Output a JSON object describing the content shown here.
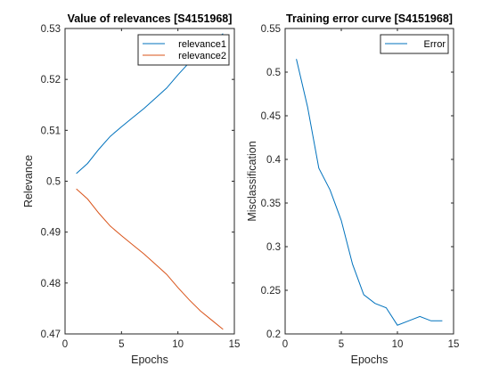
{
  "chart_data": [
    {
      "type": "line",
      "title": "Value of relevances [S4151968]",
      "xlabel": "Epochs",
      "ylabel": "Relevance",
      "xlim": [
        0,
        15
      ],
      "ylim": [
        0.47,
        0.53
      ],
      "xticks": [
        "0",
        "5",
        "10",
        "15"
      ],
      "yticks": [
        "0.47",
        "0.48",
        "0.49",
        "0.5",
        "0.51",
        "0.52",
        "0.53"
      ],
      "legend": "top-right",
      "grid": false,
      "x": [
        1,
        2,
        3,
        4,
        5,
        6,
        7,
        8,
        9,
        10,
        11,
        12,
        13,
        14
      ],
      "series": [
        {
          "name": "relevance1",
          "color": "#0072BD",
          "values": [
            0.5015,
            0.5035,
            0.5063,
            0.5088,
            0.5107,
            0.5125,
            0.5143,
            0.5163,
            0.5183,
            0.5209,
            0.5233,
            0.5255,
            0.5273,
            0.529
          ]
        },
        {
          "name": "relevance2",
          "color": "#D95319",
          "values": [
            0.4985,
            0.4965,
            0.4937,
            0.4912,
            0.4893,
            0.4875,
            0.4857,
            0.4837,
            0.4817,
            0.4791,
            0.4767,
            0.4745,
            0.4727,
            0.4709
          ]
        }
      ]
    },
    {
      "type": "line",
      "title": "Training error curve [S4151968]",
      "xlabel": "Epochs",
      "ylabel": "Misclassification",
      "xlim": [
        0,
        15
      ],
      "ylim": [
        0.2,
        0.55
      ],
      "xticks": [
        "0",
        "5",
        "10",
        "15"
      ],
      "yticks": [
        "0.2",
        "0.25",
        "0.3",
        "0.35",
        "0.4",
        "0.45",
        "0.5",
        "0.55"
      ],
      "legend": "top-right",
      "grid": false,
      "x": [
        1,
        2,
        3,
        4,
        5,
        6,
        7,
        8,
        9,
        10,
        11,
        12,
        13,
        14
      ],
      "series": [
        {
          "name": "Error",
          "color": "#0072BD",
          "values": [
            0.515,
            0.46,
            0.39,
            0.365,
            0.33,
            0.28,
            0.245,
            0.235,
            0.23,
            0.21,
            0.215,
            0.22,
            0.215,
            0.215
          ]
        }
      ]
    }
  ]
}
